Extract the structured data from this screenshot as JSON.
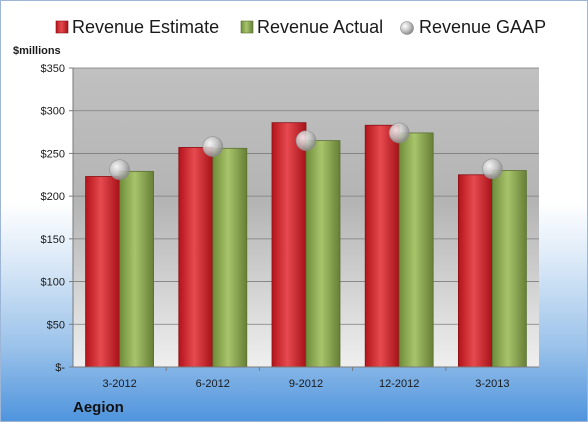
{
  "chart_data": {
    "type": "bar",
    "categories": [
      "3-2012",
      "6-2012",
      "9-2012",
      "12-2012",
      "3-2013"
    ],
    "series": [
      {
        "name": "Revenue Estimate",
        "values": [
          223,
          257,
          286,
          283,
          225
        ],
        "color": "#d9232b",
        "marker": "bar"
      },
      {
        "name": "Revenue Actual",
        "values": [
          229,
          256,
          265,
          274,
          230
        ],
        "color": "#8fac52",
        "marker": "bar"
      },
      {
        "name": "Revenue GAAP",
        "values": [
          231,
          258,
          265,
          274,
          232
        ],
        "color": "#c6c6c6",
        "marker": "circle"
      }
    ],
    "ylabel": "$millions",
    "ylim": [
      0,
      350
    ],
    "yticks": [
      0,
      50,
      100,
      150,
      200,
      250,
      300,
      350
    ],
    "ytick_labels": [
      "$-",
      "$50",
      "$100",
      "$150",
      "$200",
      "$250",
      "$300",
      "$350"
    ],
    "grid": true,
    "legend": "top"
  },
  "footer": {
    "company": "Aegion"
  }
}
